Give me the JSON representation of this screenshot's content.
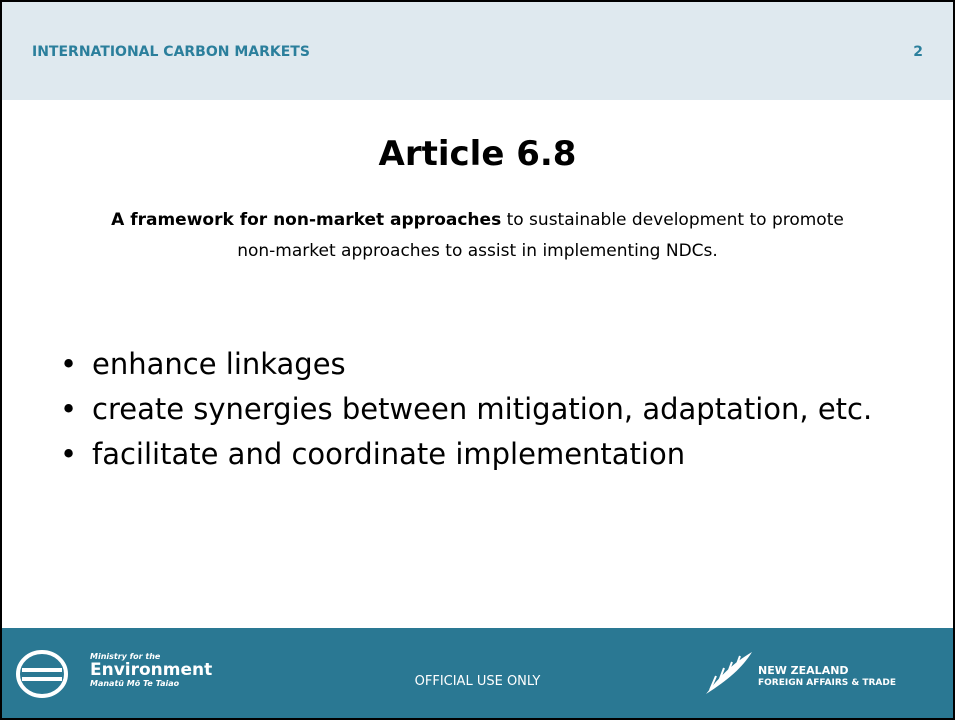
{
  "header": {
    "section": "INTERNATIONAL CARBON MARKETS",
    "page_number": "2"
  },
  "slide": {
    "title": "Article 6.8",
    "subtitle": {
      "bold": "A framework for non-market approaches",
      "rest": " to sustainable development to promote non-market approaches to assist in implementing NDCs."
    },
    "bullets": [
      "enhance linkages",
      "create synergies between mitigation, adaptation, etc.",
      "facilitate and coordinate implementation"
    ]
  },
  "footer": {
    "left_logo": {
      "small": "Ministry for the",
      "name": "Environment",
      "maori": "Manatū Mō Te Taiao"
    },
    "center": "OFFICIAL USE ONLY",
    "right_logo": {
      "line1": "NEW ZEALAND",
      "line2": "FOREIGN AFFAIRS & TRADE"
    }
  }
}
